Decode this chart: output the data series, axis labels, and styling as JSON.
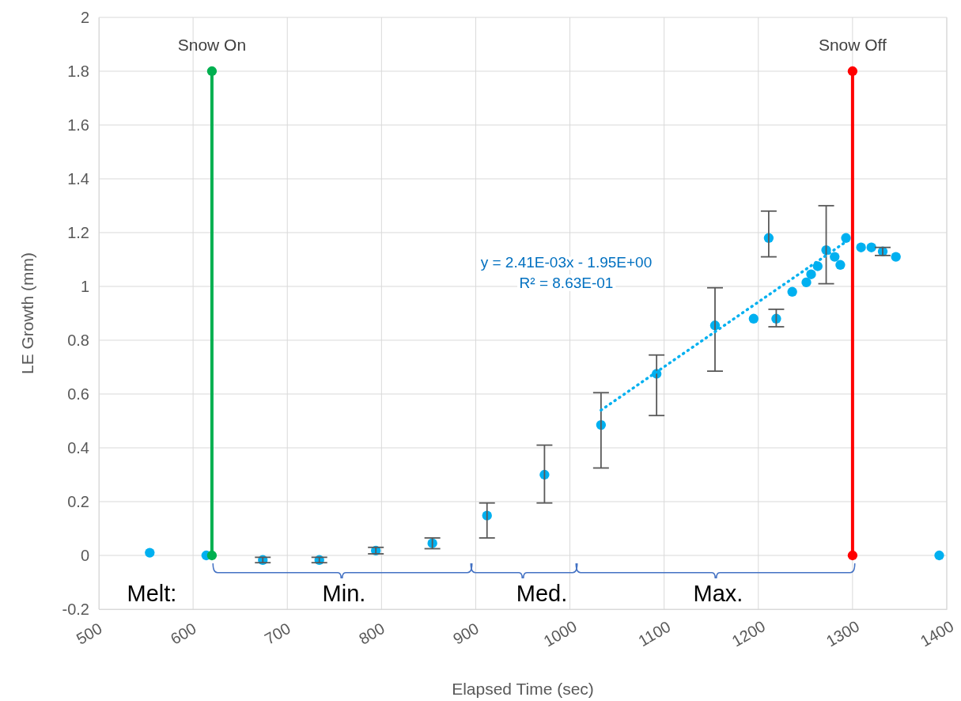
{
  "chart_data": {
    "type": "scatter",
    "xlabel": "Elapsed Time (sec)",
    "ylabel": "LE Growth (mm)",
    "xlim": [
      500,
      1400
    ],
    "xticks": [
      500,
      600,
      700,
      800,
      900,
      1000,
      1100,
      1200,
      1300,
      1400
    ],
    "ylim": [
      -0.2,
      2
    ],
    "yticks": [
      -0.2,
      0,
      0.2,
      0.4,
      0.6,
      0.8,
      1,
      1.2,
      1.4,
      1.6,
      1.8,
      2
    ],
    "grid": true,
    "legend": false,
    "marker": "circle",
    "annotations": [
      "y = 2.41E-03x - 1.95E+00\nR² = 8.63E-01",
      "Melt:",
      "Min.",
      "Med.",
      "Max."
    ],
    "series": [
      {
        "type": "scatter",
        "color": "#00b0f0",
        "x": [
          554,
          614,
          674,
          734,
          794,
          854,
          912,
          973,
          1033,
          1092,
          1154,
          1195,
          1211,
          1219,
          1236,
          1251,
          1256,
          1263,
          1272,
          1281,
          1287,
          1293,
          1309,
          1320,
          1332,
          1346,
          1392
        ],
        "values": [
          0.01,
          0,
          -0.017,
          -0.017,
          0.018,
          0.045,
          0.148,
          0.3,
          0.485,
          0.675,
          0.855,
          0.88,
          1.18,
          0.88,
          0.98,
          1.015,
          1.045,
          1.075,
          1.135,
          1.11,
          1.08,
          1.18,
          1.145,
          1.145,
          1.13,
          1.11,
          0
        ],
        "errors": [
          null,
          null,
          0.01,
          0.01,
          0.012,
          0.02,
          [
            0.065,
            0.195
          ],
          [
            0.195,
            0.41
          ],
          [
            0.325,
            0.605
          ],
          [
            0.52,
            0.745
          ],
          [
            0.685,
            0.995
          ],
          null,
          [
            1.11,
            1.28
          ],
          [
            0.85,
            0.915
          ],
          null,
          null,
          null,
          null,
          [
            1.01,
            1.3
          ],
          null,
          null,
          null,
          null,
          null,
          0.015,
          null,
          null
        ]
      },
      {
        "type": "line",
        "line_style": "dotted",
        "marker": "none",
        "color": "#00b0f0",
        "x": [
          1033,
          1293
        ],
        "values": [
          0.54,
          1.166
        ]
      },
      {
        "type": "line",
        "name": "Snow On",
        "line_style": "solid",
        "marker": "circle",
        "color": "#00b050",
        "x": [
          620,
          620
        ],
        "values": [
          0,
          1.8
        ]
      },
      {
        "type": "line",
        "name": "Snow Off",
        "line_style": "solid",
        "marker": "circle",
        "color": "#ff0000",
        "x": [
          1300,
          1300
        ],
        "values": [
          0,
          1.8
        ]
      }
    ]
  }
}
